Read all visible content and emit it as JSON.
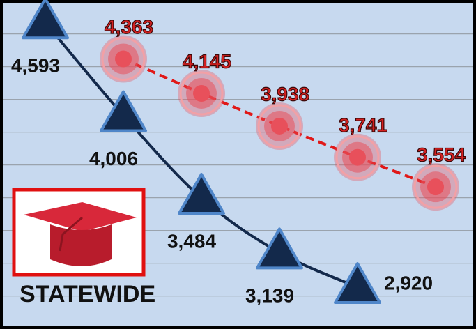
{
  "chart_data": {
    "type": "line",
    "categories": [
      null,
      null,
      null,
      null,
      null,
      null
    ],
    "series": [
      {
        "color": "#13294b",
        "values": [
          4593,
          4006,
          3484,
          3139,
          2920,
          null
        ],
        "value_labels": [
          "4,593",
          "4,006",
          "3,484",
          "3,139",
          "2,920",
          null
        ]
      },
      {
        "color": "#e8505b",
        "values": [
          null,
          4363,
          4145,
          3938,
          3741,
          3554
        ],
        "value_labels": [
          null,
          "4,363",
          "4,145",
          "3,938",
          "3,741",
          "3,554"
        ]
      }
    ],
    "ylim": [
      2700,
      4700
    ],
    "grid": true,
    "annotation": "STATEWIDE"
  }
}
